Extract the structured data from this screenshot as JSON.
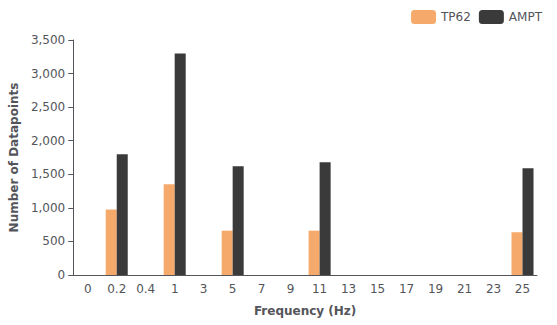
{
  "chart_data": {
    "type": "bar",
    "xlabel": "Frequency (Hz)",
    "ylabel": "Number of Datapoints",
    "categories": [
      "0",
      "0.2",
      "0.4",
      "1",
      "3",
      "5",
      "7",
      "9",
      "11",
      "13",
      "15",
      "17",
      "19",
      "21",
      "23",
      "25"
    ],
    "series": [
      {
        "name": "TP62",
        "color": "#F5A96A",
        "values": [
          null,
          975,
          null,
          1350,
          null,
          660,
          null,
          null,
          660,
          null,
          null,
          null,
          null,
          null,
          null,
          635
        ]
      },
      {
        "name": "AMPT",
        "color": "#3A3A3A",
        "values": [
          null,
          1800,
          null,
          3300,
          null,
          1620,
          null,
          null,
          1680,
          null,
          null,
          null,
          null,
          null,
          null,
          1590
        ]
      }
    ],
    "ylim": [
      0,
      3500
    ],
    "yticks": [
      0,
      500,
      1000,
      1500,
      2000,
      2500,
      3000,
      3500
    ],
    "legend": "upper right",
    "grid": false
  }
}
